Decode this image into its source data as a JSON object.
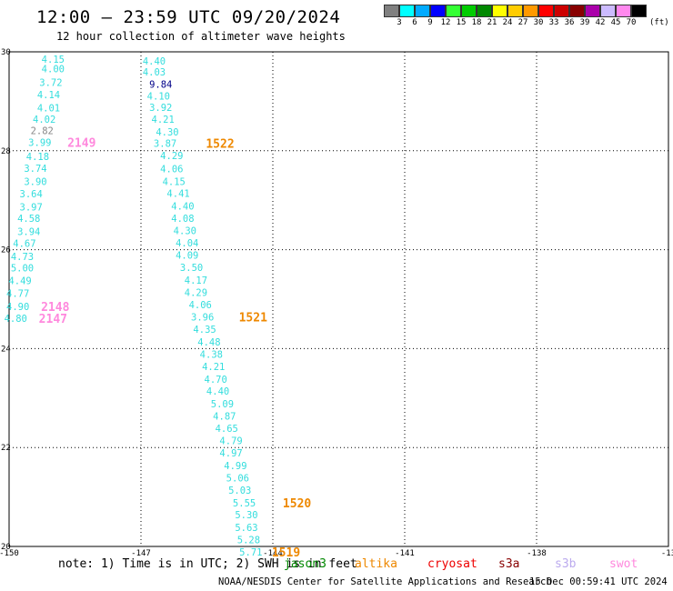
{
  "header": {
    "title": "12:00 – 23:59 UTC 09/20/2024",
    "subtitle": "12 hour collection of altimeter wave heights"
  },
  "legend": {
    "unit": "(ft)",
    "bins": [
      {
        "color": "#808080",
        "label": "3"
      },
      {
        "color": "#00ffff",
        "label": "6"
      },
      {
        "color": "#00aaff",
        "label": "9"
      },
      {
        "color": "#0000ff",
        "label": "12"
      },
      {
        "color": "#33ff33",
        "label": "15"
      },
      {
        "color": "#00cc00",
        "label": "18"
      },
      {
        "color": "#008800",
        "label": "21"
      },
      {
        "color": "#ffff00",
        "label": "24"
      },
      {
        "color": "#ffcc00",
        "label": "27"
      },
      {
        "color": "#ff9900",
        "label": "30"
      },
      {
        "color": "#ff0000",
        "label": "33"
      },
      {
        "color": "#cc0000",
        "label": "36"
      },
      {
        "color": "#880000",
        "label": "39"
      },
      {
        "color": "#aa00aa",
        "label": "42"
      },
      {
        "color": "#ccbbff",
        "label": "45"
      },
      {
        "color": "#ff88ee",
        "label": "70"
      },
      {
        "color": "#000000",
        "label": ""
      }
    ]
  },
  "axes": {
    "lon_ticks": [
      "-150",
      "-147",
      "-144",
      "-141",
      "-138",
      "-13"
    ],
    "lat_ticks": [
      "30",
      "28",
      "26",
      "24",
      "22",
      "20"
    ]
  },
  "colors": {
    "wave": "#33dddd",
    "wave_high": "#000088",
    "wave_gray": "#888888",
    "swot": "#ff88dd",
    "altika": "#ee8800"
  },
  "tracks": [
    {
      "color": "wave",
      "points": [
        {
          "lat": 29.85,
          "lon": -149.0,
          "label": "4.15"
        },
        {
          "lat": 29.66,
          "lon": -149.0,
          "label": "4.00"
        },
        {
          "lat": 29.38,
          "lon": -149.05,
          "label": "3.72"
        },
        {
          "lat": 29.14,
          "lon": -149.1,
          "label": "4.14"
        },
        {
          "lat": 28.87,
          "lon": -149.1,
          "label": "4.01"
        },
        {
          "lat": 28.64,
          "lon": -149.2,
          "label": "4.02"
        },
        {
          "lat": 28.41,
          "lon": -149.25,
          "label": "2.82",
          "color": "wave_gray"
        },
        {
          "lat": 28.17,
          "lon": -149.3,
          "label": "3.99"
        },
        {
          "lat": 27.89,
          "lon": -149.35,
          "label": "4.18"
        },
        {
          "lat": 27.65,
          "lon": -149.4,
          "label": "3.74"
        },
        {
          "lat": 27.38,
          "lon": -149.4,
          "label": "3.90"
        },
        {
          "lat": 27.13,
          "lon": -149.5,
          "label": "3.64"
        },
        {
          "lat": 26.87,
          "lon": -149.5,
          "label": "3.97"
        },
        {
          "lat": 26.64,
          "lon": -149.55,
          "label": "4.58"
        },
        {
          "lat": 26.37,
          "lon": -149.55,
          "label": "3.94"
        },
        {
          "lat": 26.13,
          "lon": -149.65,
          "label": "4.67"
        },
        {
          "lat": 25.86,
          "lon": -149.7,
          "label": "4.73"
        },
        {
          "lat": 25.63,
          "lon": -149.7,
          "label": "5.00"
        },
        {
          "lat": 25.38,
          "lon": -149.75,
          "label": "4.49"
        },
        {
          "lat": 25.12,
          "lon": -149.8,
          "label": "4.77"
        },
        {
          "lat": 24.85,
          "lon": -149.8,
          "label": "4.90"
        },
        {
          "lat": 24.61,
          "lon": -149.85,
          "label": "4.80"
        }
      ]
    },
    {
      "color": "wave",
      "points": [
        {
          "lat": 29.82,
          "lon": -146.7,
          "label": "4.40"
        },
        {
          "lat": 29.6,
          "lon": -146.7,
          "label": "4.03"
        },
        {
          "lat": 29.35,
          "lon": -146.55,
          "label": "9.84",
          "color": "wave_high"
        },
        {
          "lat": 29.11,
          "lon": -146.6,
          "label": "4.10"
        },
        {
          "lat": 28.88,
          "lon": -146.55,
          "label": "3.92"
        },
        {
          "lat": 28.64,
          "lon": -146.5,
          "label": "4.21"
        },
        {
          "lat": 28.38,
          "lon": -146.4,
          "label": "4.30"
        },
        {
          "lat": 28.15,
          "lon": -146.45,
          "label": "3.87"
        },
        {
          "lat": 27.9,
          "lon": -146.3,
          "label": "4.29"
        },
        {
          "lat": 27.64,
          "lon": -146.3,
          "label": "4.06"
        },
        {
          "lat": 27.38,
          "lon": -146.25,
          "label": "4.15"
        },
        {
          "lat": 27.14,
          "lon": -146.15,
          "label": "4.41"
        },
        {
          "lat": 26.88,
          "lon": -146.05,
          "label": "4.40"
        },
        {
          "lat": 26.64,
          "lon": -146.05,
          "label": "4.08"
        },
        {
          "lat": 26.39,
          "lon": -146.0,
          "label": "4.30"
        },
        {
          "lat": 26.14,
          "lon": -145.95,
          "label": "4.04"
        },
        {
          "lat": 25.89,
          "lon": -145.95,
          "label": "4.09"
        },
        {
          "lat": 25.64,
          "lon": -145.85,
          "label": "3.50"
        },
        {
          "lat": 25.39,
          "lon": -145.75,
          "label": "4.17"
        },
        {
          "lat": 25.14,
          "lon": -145.75,
          "label": "4.29"
        },
        {
          "lat": 24.89,
          "lon": -145.65,
          "label": "4.06"
        },
        {
          "lat": 24.64,
          "lon": -145.6,
          "label": "3.96"
        },
        {
          "lat": 24.39,
          "lon": -145.55,
          "label": "4.35"
        },
        {
          "lat": 24.14,
          "lon": -145.45,
          "label": "4.48"
        },
        {
          "lat": 23.89,
          "lon": -145.4,
          "label": "4.38"
        },
        {
          "lat": 23.64,
          "lon": -145.35,
          "label": "4.21"
        },
        {
          "lat": 23.38,
          "lon": -145.3,
          "label": "4.70"
        },
        {
          "lat": 23.14,
          "lon": -145.25,
          "label": "4.40"
        },
        {
          "lat": 22.89,
          "lon": -145.15,
          "label": "5.09"
        },
        {
          "lat": 22.64,
          "lon": -145.1,
          "label": "4.87"
        },
        {
          "lat": 22.39,
          "lon": -145.05,
          "label": "4.65"
        },
        {
          "lat": 22.14,
          "lon": -144.95,
          "label": "4.79"
        },
        {
          "lat": 21.89,
          "lon": -144.95,
          "label": "4.97"
        },
        {
          "lat": 21.64,
          "lon": -144.85,
          "label": "4.99"
        },
        {
          "lat": 21.39,
          "lon": -144.8,
          "label": "5.06"
        },
        {
          "lat": 21.14,
          "lon": -144.75,
          "label": "5.03"
        },
        {
          "lat": 20.88,
          "lon": -144.65,
          "label": "5.55"
        },
        {
          "lat": 20.64,
          "lon": -144.6,
          "label": "5.30"
        },
        {
          "lat": 20.39,
          "lon": -144.6,
          "label": "5.63"
        },
        {
          "lat": 20.14,
          "lon": -144.55,
          "label": "5.28"
        },
        {
          "lat": 19.89,
          "lon": -144.5,
          "label": "5.71"
        }
      ]
    }
  ],
  "pass_labels": [
    {
      "label": "2149",
      "lat": 28.17,
      "lon": -148.35,
      "color": "swot"
    },
    {
      "label": "1522",
      "lat": 28.15,
      "lon": -145.2,
      "color": "altika"
    },
    {
      "label": "2148",
      "lat": 24.85,
      "lon": -148.95,
      "color": "swot"
    },
    {
      "label": "2147",
      "lat": 24.61,
      "lon": -149.0,
      "color": "swot"
    },
    {
      "label": "1521",
      "lat": 24.64,
      "lon": -144.45,
      "color": "altika"
    },
    {
      "label": "1520",
      "lat": 20.88,
      "lon": -143.45,
      "color": "altika"
    },
    {
      "label": "1519",
      "lat": 19.89,
      "lon": -143.7,
      "color": "altika"
    }
  ],
  "note": "note:  1) Time is in UTC; 2) SWH is in feet",
  "satellites": [
    {
      "name": "jason3",
      "color": "#008800"
    },
    {
      "name": "altika",
      "color": "#ee8800"
    },
    {
      "name": "cryosat",
      "color": "#ee0000"
    },
    {
      "name": "s3a",
      "color": "#880000"
    },
    {
      "name": "s3b",
      "color": "#bbaaee"
    },
    {
      "name": "swot",
      "color": "#ff88dd"
    }
  ],
  "footer": {
    "credit": "NOAA/NESDIS Center for Satellite Applications and Research",
    "timestamp": "15 Dec 00:59:41 UTC 2024"
  }
}
